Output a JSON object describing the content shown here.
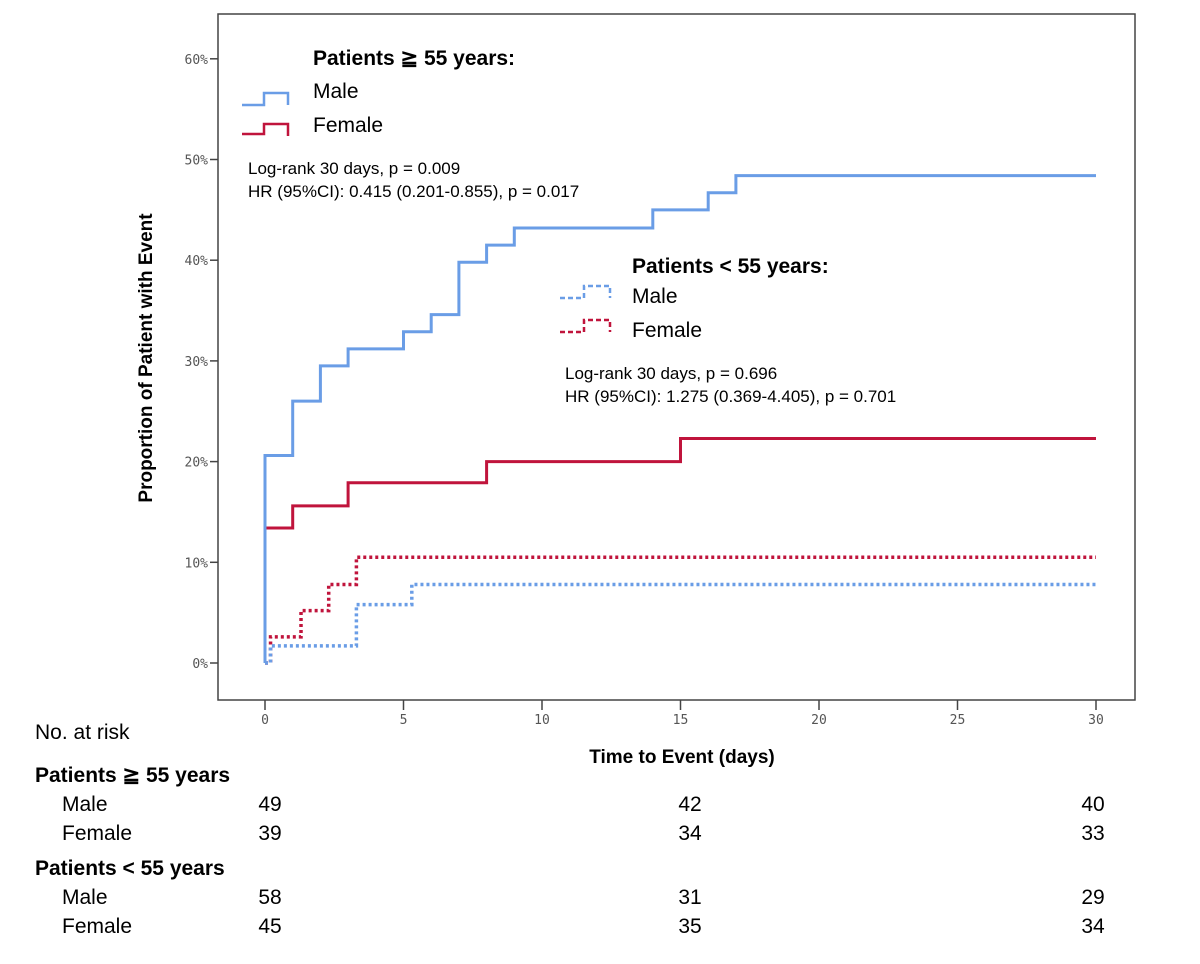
{
  "chart_data": {
    "type": "line",
    "subtype": "kaplan-meier step",
    "xlabel": "Time to Event (days)",
    "ylabel": "Proportion of Patient with Event",
    "xlim": [
      -1,
      31
    ],
    "ylim": [
      -4,
      64
    ],
    "x_ticks": [
      "0",
      "5",
      "10",
      "15",
      "20",
      "25",
      "30"
    ],
    "y_ticks": [
      "0%",
      "10%",
      "20%",
      "30%",
      "40%",
      "50%",
      "60%"
    ],
    "grid": false,
    "colors": {
      "male": "#6a9de6",
      "female": "#c0143c"
    },
    "legend_groups": [
      {
        "title": "Patients ≧ 55 years:",
        "items": [
          "Male",
          "Female"
        ],
        "stats": [
          "Log-rank 30 days, p = 0.009",
          "HR (95%CI): 0.415 (0.201-0.855), p = 0.017"
        ]
      },
      {
        "title": "Patients < 55 years:",
        "items": [
          "Male",
          "Female"
        ],
        "stats": [
          "Log-rank 30 days, p = 0.696",
          "HR (95%CI): 1.275 (0.369-4.405), p = 0.701"
        ]
      }
    ],
    "series": [
      {
        "name": "Patients ≧ 55 years: Male",
        "style": "solid",
        "color": "#6a9de6",
        "x": [
          0,
          0,
          1,
          2,
          3,
          5,
          6,
          7,
          8,
          9,
          14,
          16,
          17,
          30
        ],
        "y": [
          0,
          20.6,
          26.0,
          29.5,
          31.2,
          32.9,
          34.6,
          39.8,
          41.5,
          43.2,
          45.0,
          46.7,
          48.4,
          48.4
        ]
      },
      {
        "name": "Patients ≧ 55 years: Female",
        "style": "solid",
        "color": "#c0143c",
        "x": [
          0,
          0,
          1,
          3,
          8,
          15,
          30
        ],
        "y": [
          0,
          13.4,
          15.6,
          17.9,
          20.0,
          22.3,
          22.3
        ]
      },
      {
        "name": "Patients < 55 years: Male",
        "style": "dotted",
        "color": "#6a9de6",
        "x": [
          0,
          0.2,
          3.3,
          5.3,
          30
        ],
        "y": [
          0,
          1.7,
          5.8,
          7.8,
          7.8
        ]
      },
      {
        "name": "Patients < 55 years: Female",
        "style": "dotted",
        "color": "#c0143c",
        "x": [
          0,
          0.2,
          1.3,
          2.3,
          3.3,
          30
        ],
        "y": [
          0,
          2.6,
          5.2,
          7.8,
          10.5,
          10.5
        ]
      }
    ]
  },
  "risk_table": {
    "title": "No. at risk",
    "groups": [
      {
        "label": "Patients ≧ 55 years",
        "rows": [
          {
            "label": "Male",
            "values": [
              "49",
              "42",
              "40"
            ]
          },
          {
            "label": "Female",
            "values": [
              "39",
              "34",
              "33"
            ]
          }
        ]
      },
      {
        "label": "Patients < 55 years",
        "rows": [
          {
            "label": "Male",
            "values": [
              "58",
              "31",
              "29"
            ]
          },
          {
            "label": "Female",
            "values": [
              "45",
              "35",
              "34"
            ]
          }
        ]
      }
    ]
  }
}
